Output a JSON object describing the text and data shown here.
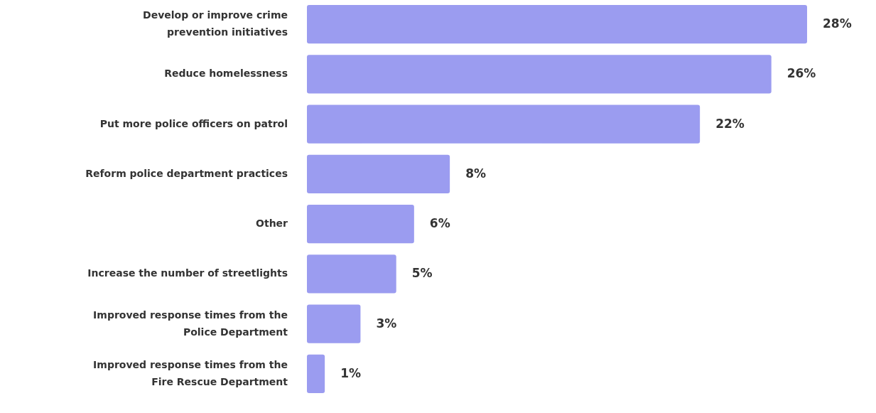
{
  "chart_data": {
    "type": "bar",
    "orientation": "horizontal",
    "categories": [
      "Develop or improve crime prevention initiatives",
      "Reduce homelessness",
      "Put more police officers on patrol",
      "Reform police department practices",
      "Other",
      "Increase the number of streetlights",
      "Improved response times from the Police Department",
      "Improved response times from the Fire Rescue Department"
    ],
    "values": [
      28,
      26,
      22,
      8,
      6,
      5,
      3,
      1
    ],
    "value_labels": [
      "28%",
      "26%",
      "22%",
      "8%",
      "6%",
      "5%",
      "3%",
      "1%"
    ],
    "color": "#9b9cf0"
  }
}
